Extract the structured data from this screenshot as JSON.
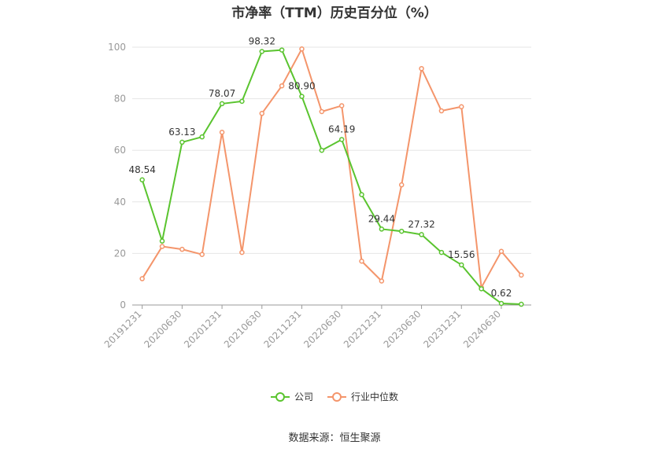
{
  "chart_data": {
    "type": "line",
    "title": "市净率（TTM）历史百分位（%）",
    "x": [
      "20191231",
      "20200331",
      "20200630",
      "20200930",
      "20201231",
      "20210331",
      "20210630",
      "20210930",
      "20211231",
      "20220331",
      "20220630",
      "20220930",
      "20221231",
      "20230331",
      "20230630",
      "20230930",
      "20231231",
      "20240331",
      "20240630",
      "20240930"
    ],
    "xtick_labels": [
      "20191231",
      "20200630",
      "20201231",
      "20210630",
      "20211231",
      "20220630",
      "20221231",
      "20230630",
      "20231231",
      "20240630"
    ],
    "ylim": [
      0,
      100
    ],
    "yticks": [
      0,
      20,
      40,
      60,
      80,
      100
    ],
    "grid": true,
    "legend_position": "bottom",
    "series": [
      {
        "name": "公司",
        "color": "#5ac42f",
        "values": [
          48.54,
          24.8,
          63.13,
          65.2,
          78.07,
          79.0,
          98.32,
          98.9,
          80.9,
          60.0,
          64.19,
          42.8,
          29.44,
          28.6,
          27.32,
          20.4,
          15.56,
          6.3,
          0.62,
          0.3
        ],
        "labels": [
          "48.54",
          null,
          "63.13",
          null,
          "78.07",
          null,
          "98.32",
          null,
          "80.90",
          null,
          "64.19",
          null,
          "29.44",
          null,
          "27.32",
          null,
          "15.56",
          null,
          "0.62",
          null
        ]
      },
      {
        "name": "行业中位数",
        "color": "#f4956b",
        "values": [
          10.2,
          22.7,
          21.6,
          19.6,
          67.0,
          20.4,
          74.3,
          85.0,
          99.3,
          75.0,
          77.3,
          17.0,
          9.3,
          46.6,
          91.7,
          75.3,
          76.9,
          6.8,
          20.8,
          11.6
        ]
      }
    ]
  },
  "source_text": "数据来源：恒生聚源"
}
